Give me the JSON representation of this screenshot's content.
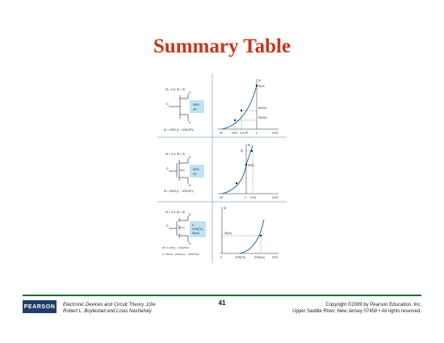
{
  "slide": {
    "title": "Summary Table",
    "page_number": "41"
  },
  "footer": {
    "logo_text": "PEARSON",
    "book_line1": "Electronic Devices and Circuit Theory, 10/e",
    "book_line2": "Robert L. Boylestad and Louis Nashelsky",
    "copyright_line1": "Copyright ©2009 by Pearson Education, Inc.",
    "copyright_line2": "Upper Saddle River, New Jersey 07458 • All rights reserved."
  },
  "colors": {
    "title": "#c8351d",
    "rule": "#1f6b35",
    "curve": "#1f6ea8",
    "highlight": "#bfe3f2"
  },
  "figure": {
    "panel1": {
      "cond": "IG = 0 A, ID = IS",
      "eq": "ID = IDSS (1 − VGS/VP)²",
      "box1": "IDSS",
      "box2": "VP",
      "ylabel": "ID",
      "y_top": "IDSS",
      "y_mid": "IDSS/2",
      "y_low": "IDSS/4",
      "x_vp": "VP",
      "x_vp2": "VP/2",
      "x_03": "0.3 VP",
      "x_0": "0",
      "x_vgs": "VGS"
    },
    "panel2": {
      "cond": "IG = 0 A, ID = IS",
      "eq": "ID = IDSS (1 − VGS/VP)²",
      "box1": "IDSS",
      "box2": "VP",
      "ylabel": "ID",
      "y_top": "ID",
      "y_mid": "IDSS",
      "x_vp": "VP",
      "x_0": "0",
      "x_vgs1": "VGS",
      "x_vgs": "VGS"
    },
    "panel3": {
      "cond": "IG = 0 A, ID = IS",
      "eq1": "ID = k (VGS − VGS(Th))²",
      "eq2": "k = ID(on) / (VGS(on) − VGS(Th))²",
      "box1": "k",
      "box2": "VGS(Th)",
      "box3": "ID(on)",
      "ylabel": "ID",
      "y_on": "ID(on)",
      "x_0": "0",
      "x_th": "VGS(Th)",
      "x_on": "VGS(on)",
      "x_vgs": "VGS"
    }
  }
}
